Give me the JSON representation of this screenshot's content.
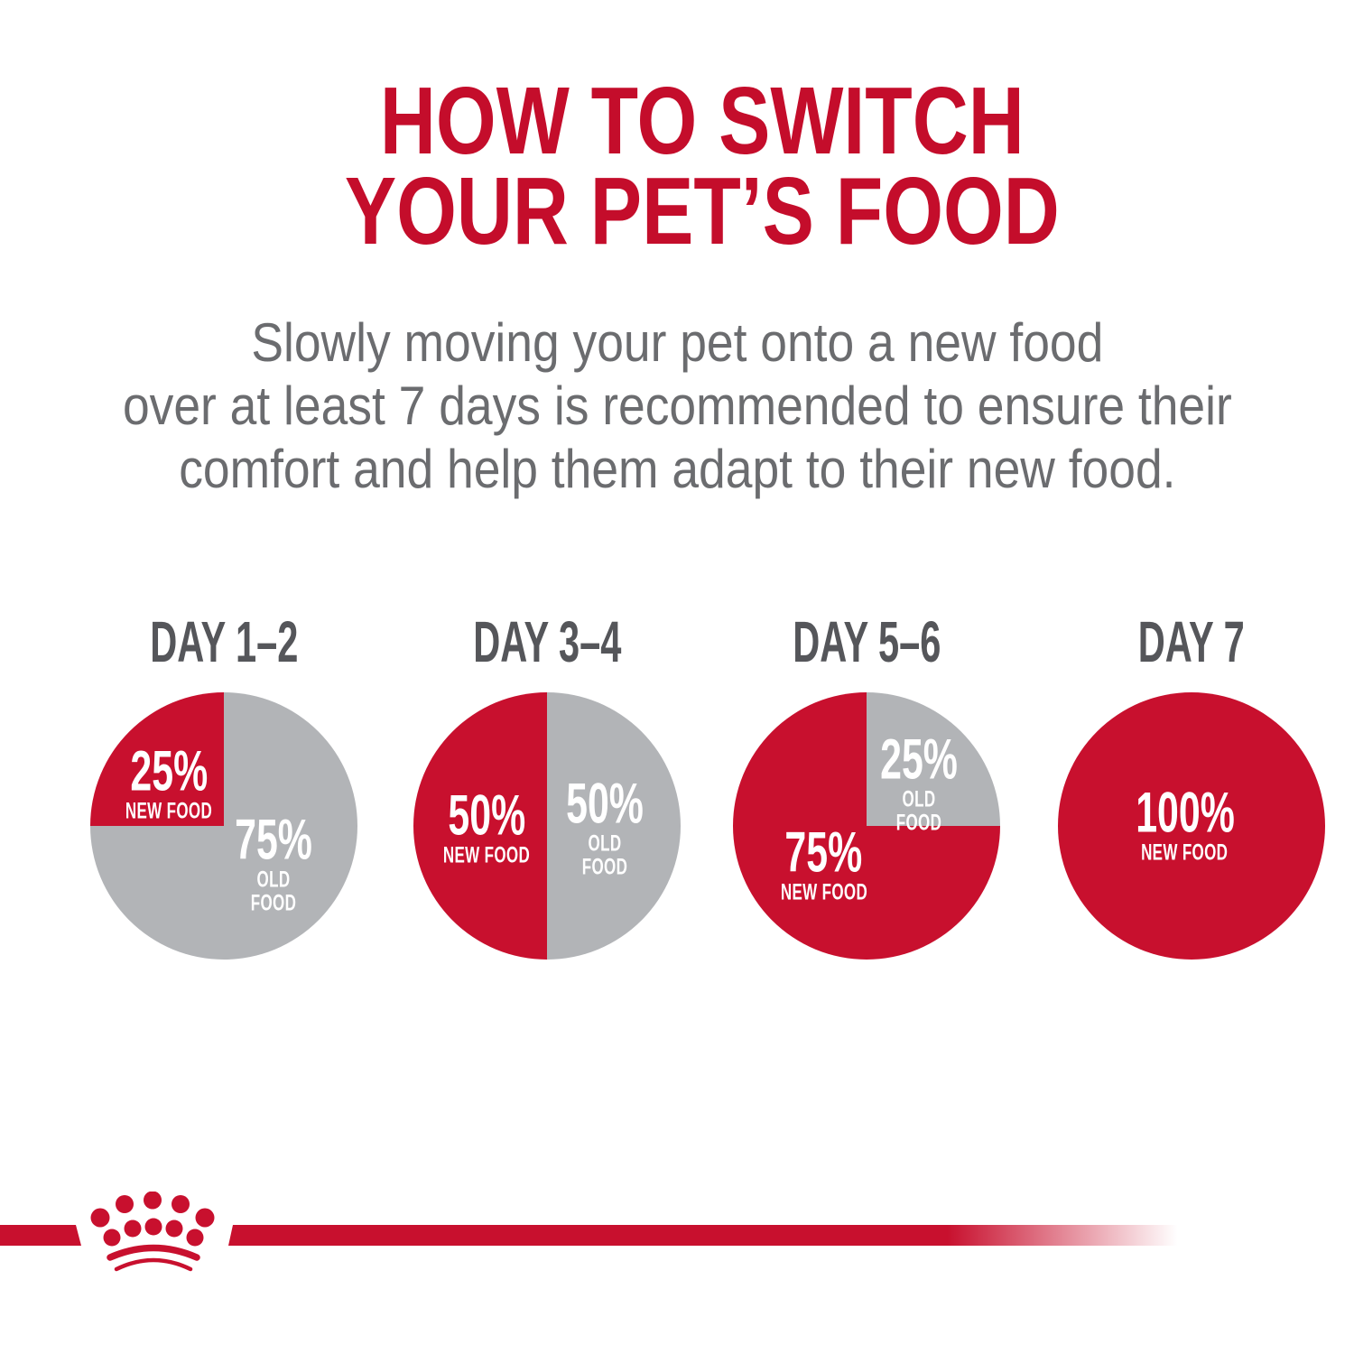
{
  "title_lines": [
    "HOW TO SWITCH",
    "YOUR PET’S FOOD"
  ],
  "subtitle_lines": [
    "Slowly moving your pet onto a new food",
    "over at least 7 days is recommended to ensure their",
    "comfort and help them adapt to their new food."
  ],
  "colors": {
    "brand_red": "#c8102e",
    "title_red": "#c40d2b",
    "pie_gray": "#b2b4b7",
    "heading_gray": "#55565a",
    "subtitle_gray": "#6b6c6f",
    "label_white": "#ffffff"
  },
  "chart_data": [
    {
      "type": "pie",
      "title": "DAY 1–2",
      "unit": "%",
      "slices": [
        {
          "label": "OLD FOOD",
          "value": 75,
          "color": "pie_gray"
        },
        {
          "label": "NEW FOOD",
          "value": 25,
          "color": "brand_red"
        }
      ],
      "labels": [
        {
          "pct": "25%",
          "text": "NEW FOOD",
          "position": "upper-left"
        },
        {
          "pct": "75%",
          "text": "OLD FOOD",
          "position": "lower-right"
        }
      ]
    },
    {
      "type": "pie",
      "title": "DAY 3–4",
      "unit": "%",
      "slices": [
        {
          "label": "OLD FOOD",
          "value": 50,
          "color": "pie_gray"
        },
        {
          "label": "NEW FOOD",
          "value": 50,
          "color": "brand_red"
        }
      ],
      "labels": [
        {
          "pct": "50%",
          "text": "NEW FOOD",
          "position": "left"
        },
        {
          "pct": "50%",
          "text": "OLD FOOD",
          "position": "right"
        }
      ]
    },
    {
      "type": "pie",
      "title": "DAY 5–6",
      "unit": "%",
      "slices": [
        {
          "label": "OLD FOOD",
          "value": 25,
          "color": "pie_gray"
        },
        {
          "label": "NEW FOOD",
          "value": 75,
          "color": "brand_red"
        }
      ],
      "labels": [
        {
          "pct": "25%",
          "text": "OLD FOOD",
          "position": "upper-right"
        },
        {
          "pct": "75%",
          "text": "NEW FOOD",
          "position": "lower-left"
        }
      ]
    },
    {
      "type": "pie",
      "title": "DAY 7",
      "unit": "%",
      "slices": [
        {
          "label": "NEW FOOD",
          "value": 100,
          "color": "brand_red"
        }
      ],
      "labels": [
        {
          "pct": "100%",
          "text": "NEW FOOD",
          "position": "center"
        }
      ]
    }
  ],
  "footer": {
    "brand_logo_icon": "royal-canin-crown-icon"
  }
}
